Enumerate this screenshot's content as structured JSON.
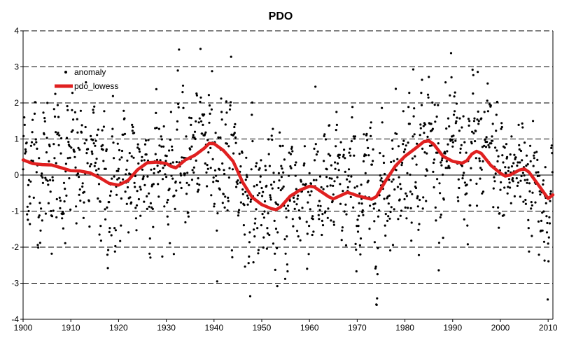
{
  "chart_data": {
    "type": "scatter",
    "title": "PDO",
    "xlabel": "",
    "ylabel": "",
    "xlim": [
      1900,
      2011
    ],
    "ylim": [
      -4,
      4
    ],
    "x_ticks": [
      "1900",
      "1910",
      "1920",
      "1930",
      "1940",
      "1950",
      "1960",
      "1970",
      "1980",
      "1990",
      "2000",
      "2010"
    ],
    "y_ticks": [
      "4",
      "3",
      "2",
      "1",
      "0",
      "-1",
      "-2",
      "-3",
      "-4"
    ],
    "grid": "horizontal dashed",
    "legend_position": "top-left",
    "colors": {
      "anomaly": "#000000",
      "pdo_lowess": "#e02020"
    },
    "series": [
      {
        "name": "anomaly",
        "style": "markers",
        "monthly_from": 1900,
        "note_values_are_monthly_anomalies_from_jan_1900": true,
        "values": []
      },
      {
        "name": "pdo_lowess",
        "style": "line",
        "x": [
          1900,
          1902,
          1904,
          1906,
          1908,
          1910,
          1912,
          1914,
          1916,
          1918,
          1920,
          1922,
          1924,
          1926,
          1928,
          1930,
          1931,
          1932,
          1934,
          1936,
          1938,
          1939,
          1940,
          1942,
          1944,
          1946,
          1948,
          1950,
          1952,
          1953,
          1954,
          1956,
          1958,
          1960,
          1961,
          1962,
          1964,
          1965,
          1966,
          1968,
          1970,
          1972,
          1973,
          1974,
          1976,
          1978,
          1980,
          1982,
          1984,
          1985,
          1986,
          1988,
          1990,
          1992,
          1993,
          1994,
          1995,
          1996,
          1998,
          2000,
          2001,
          2002,
          2004,
          2005,
          2006,
          2008,
          2010,
          2011
        ],
        "values": [
          0.42,
          0.32,
          0.29,
          0.28,
          0.2,
          0.12,
          0.11,
          0.06,
          -0.07,
          -0.23,
          -0.28,
          -0.15,
          0.15,
          0.34,
          0.36,
          0.32,
          0.24,
          0.2,
          0.42,
          0.55,
          0.75,
          0.88,
          0.87,
          0.68,
          0.38,
          -0.2,
          -0.62,
          -0.82,
          -0.93,
          -0.96,
          -0.88,
          -0.58,
          -0.42,
          -0.31,
          -0.33,
          -0.42,
          -0.6,
          -0.66,
          -0.6,
          -0.48,
          -0.57,
          -0.64,
          -0.67,
          -0.6,
          -0.15,
          0.25,
          0.52,
          0.72,
          0.93,
          0.95,
          0.86,
          0.52,
          0.38,
          0.33,
          0.4,
          0.58,
          0.66,
          0.6,
          0.27,
          0.05,
          -0.03,
          0.0,
          0.14,
          0.17,
          0.08,
          -0.28,
          -0.65,
          -0.55
        ]
      }
    ]
  }
}
